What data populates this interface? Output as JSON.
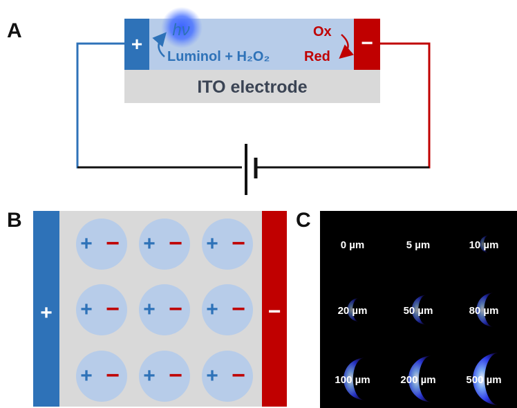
{
  "panels": {
    "a": {
      "letter": "A",
      "electrode_label": "ITO electrode",
      "anode_sign": "+",
      "cathode_sign": "−",
      "photon_label": "hν",
      "anode_reaction": "Luminol + H₂O₂",
      "cathode_ox": "Ox",
      "cathode_red": "Red"
    },
    "b": {
      "letter": "B",
      "anode_sign": "+",
      "cathode_sign": "−",
      "particle_plus": "+",
      "particle_minus": "−"
    },
    "c": {
      "letter": "C",
      "images": [
        {
          "label": "0 µm",
          "intensity": 0
        },
        {
          "label": "5 µm",
          "intensity": 0
        },
        {
          "label": "10 µm",
          "intensity": 0.15
        },
        {
          "label": "20 µm",
          "intensity": 0.3
        },
        {
          "label": "50 µm",
          "intensity": 0.45
        },
        {
          "label": "80 µm",
          "intensity": 0.55
        },
        {
          "label": "100 µm",
          "intensity": 0.75
        },
        {
          "label": "200 µm",
          "intensity": 0.85
        },
        {
          "label": "500 µm",
          "intensity": 1.0
        }
      ]
    }
  },
  "colors": {
    "anode": "#2e72b8",
    "cathode": "#c00000",
    "solution": "#b7cce9",
    "electrode_gray": "#d9d9d9",
    "reaction_blue": "#2e72b8",
    "reaction_red": "#c00000",
    "ecl_glow": "#3c5cff"
  }
}
